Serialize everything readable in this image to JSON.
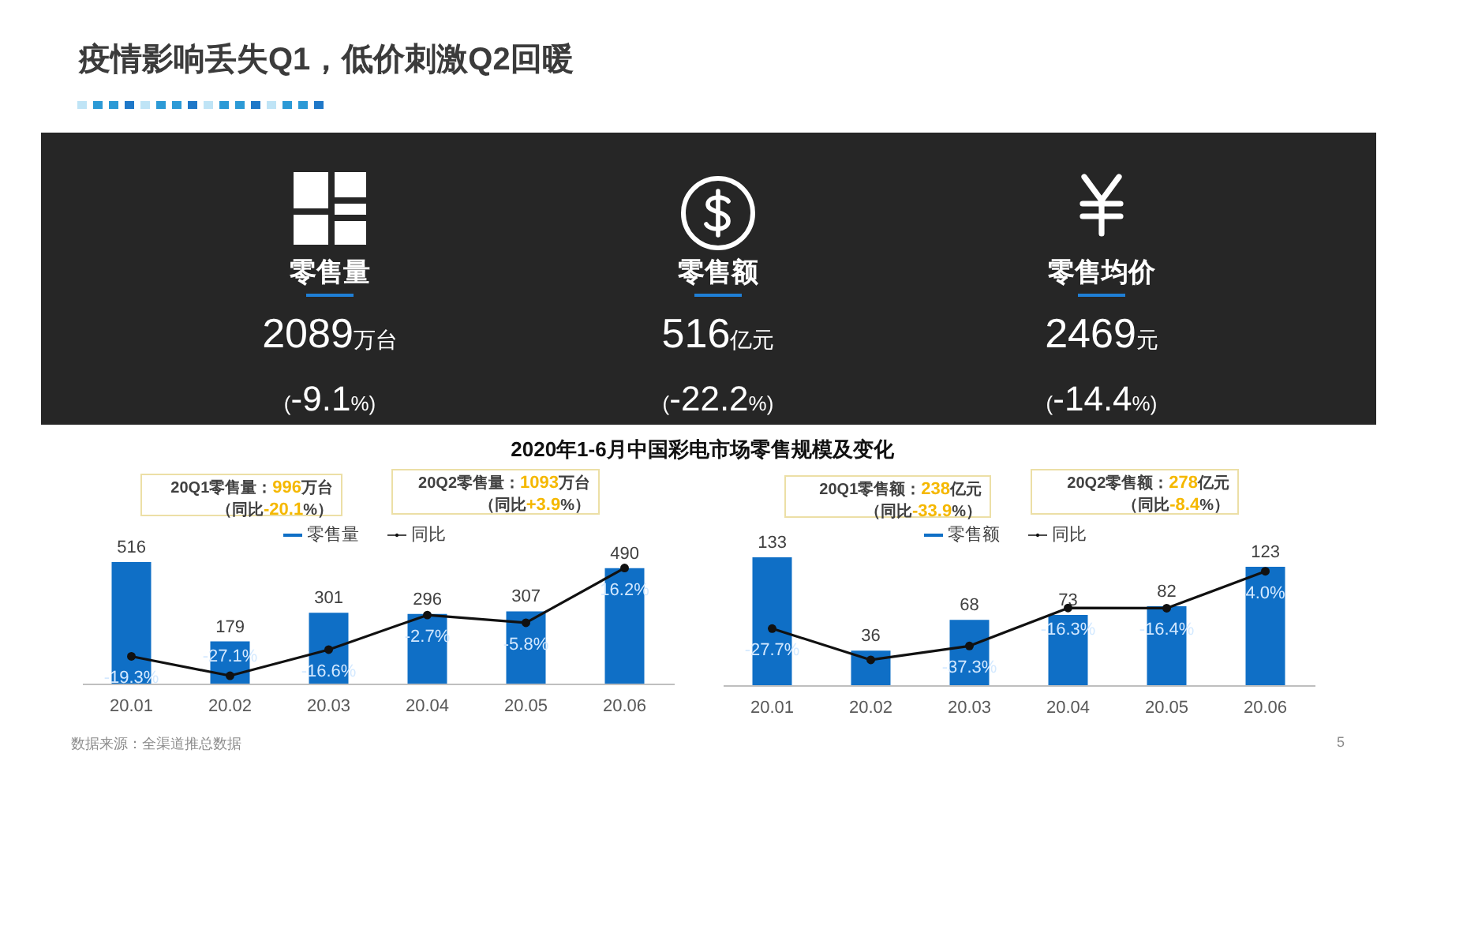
{
  "chart_data": [
    {
      "type": "other",
      "title": "疫情影响丢失Q1，低价刺激Q2回暖",
      "categories": [
        "零售量",
        "零售额",
        "零售均价"
      ],
      "annotations": [
        "2089万台",
        "(-9.1%)",
        "516亿元",
        "(-22.2%)",
        "2469元",
        "(-14.4%)"
      ]
    },
    {
      "type": "bar",
      "title": "2020年1-6月中国彩电市场零售规模及变化",
      "categories": [
        "20.01",
        "20.02",
        "20.03",
        "20.04",
        "20.05",
        "20.06"
      ],
      "series": [
        {
          "name": "零售量",
          "type": "bar",
          "color": "#0f6fc6",
          "values": [
            516,
            179,
            301,
            296,
            307,
            490
          ],
          "value_labels": [
            "516",
            "179",
            "301",
            "296",
            "307",
            "490"
          ]
        },
        {
          "name": "同比",
          "type": "line",
          "axis": "y2",
          "color": "#111111",
          "marker": "circle",
          "values": [
            -19.3,
            -27.1,
            -16.6,
            -2.7,
            -5.8,
            16.2
          ],
          "value_labels": [
            "-19.3%",
            "-27.1%",
            "-16.6%",
            "-2.7%",
            "-5.8%",
            "16.2%"
          ]
        }
      ],
      "legend": "top",
      "tick_labels": "x",
      "annotations": [
        "20Q1零售量：996万台（同比-20.1%）",
        "20Q2零售量：1093万台（同比+3.9%）",
        "数据来源：全渠道推总数据"
      ]
    },
    {
      "type": "bar",
      "categories": [
        "20.01",
        "20.02",
        "20.03",
        "20.04",
        "20.05",
        "20.06"
      ],
      "series": [
        {
          "name": "零售额",
          "type": "bar",
          "color": "#0f6fc6",
          "values": [
            133,
            36,
            68,
            73,
            82,
            123
          ],
          "value_labels": [
            "133",
            "36",
            "68",
            "73",
            "82",
            "123"
          ]
        },
        {
          "name": "同比",
          "type": "line",
          "axis": "y2",
          "color": "#111111",
          "marker": "circle",
          "values": [
            -27.7,
            -45,
            -37.3,
            -16.3,
            -16.4,
            4.0
          ],
          "value_labels": [
            "-27.7%",
            null,
            "-37.3%",
            "-16.3%",
            "-16.4%",
            "4.0%"
          ]
        }
      ],
      "legend": "top",
      "tick_labels": "x",
      "annotations": [
        "20Q1零售额：238亿元（同比-33.9%）",
        "20Q2零售额：278亿元（同比-8.4%）",
        "5"
      ]
    }
  ]
}
